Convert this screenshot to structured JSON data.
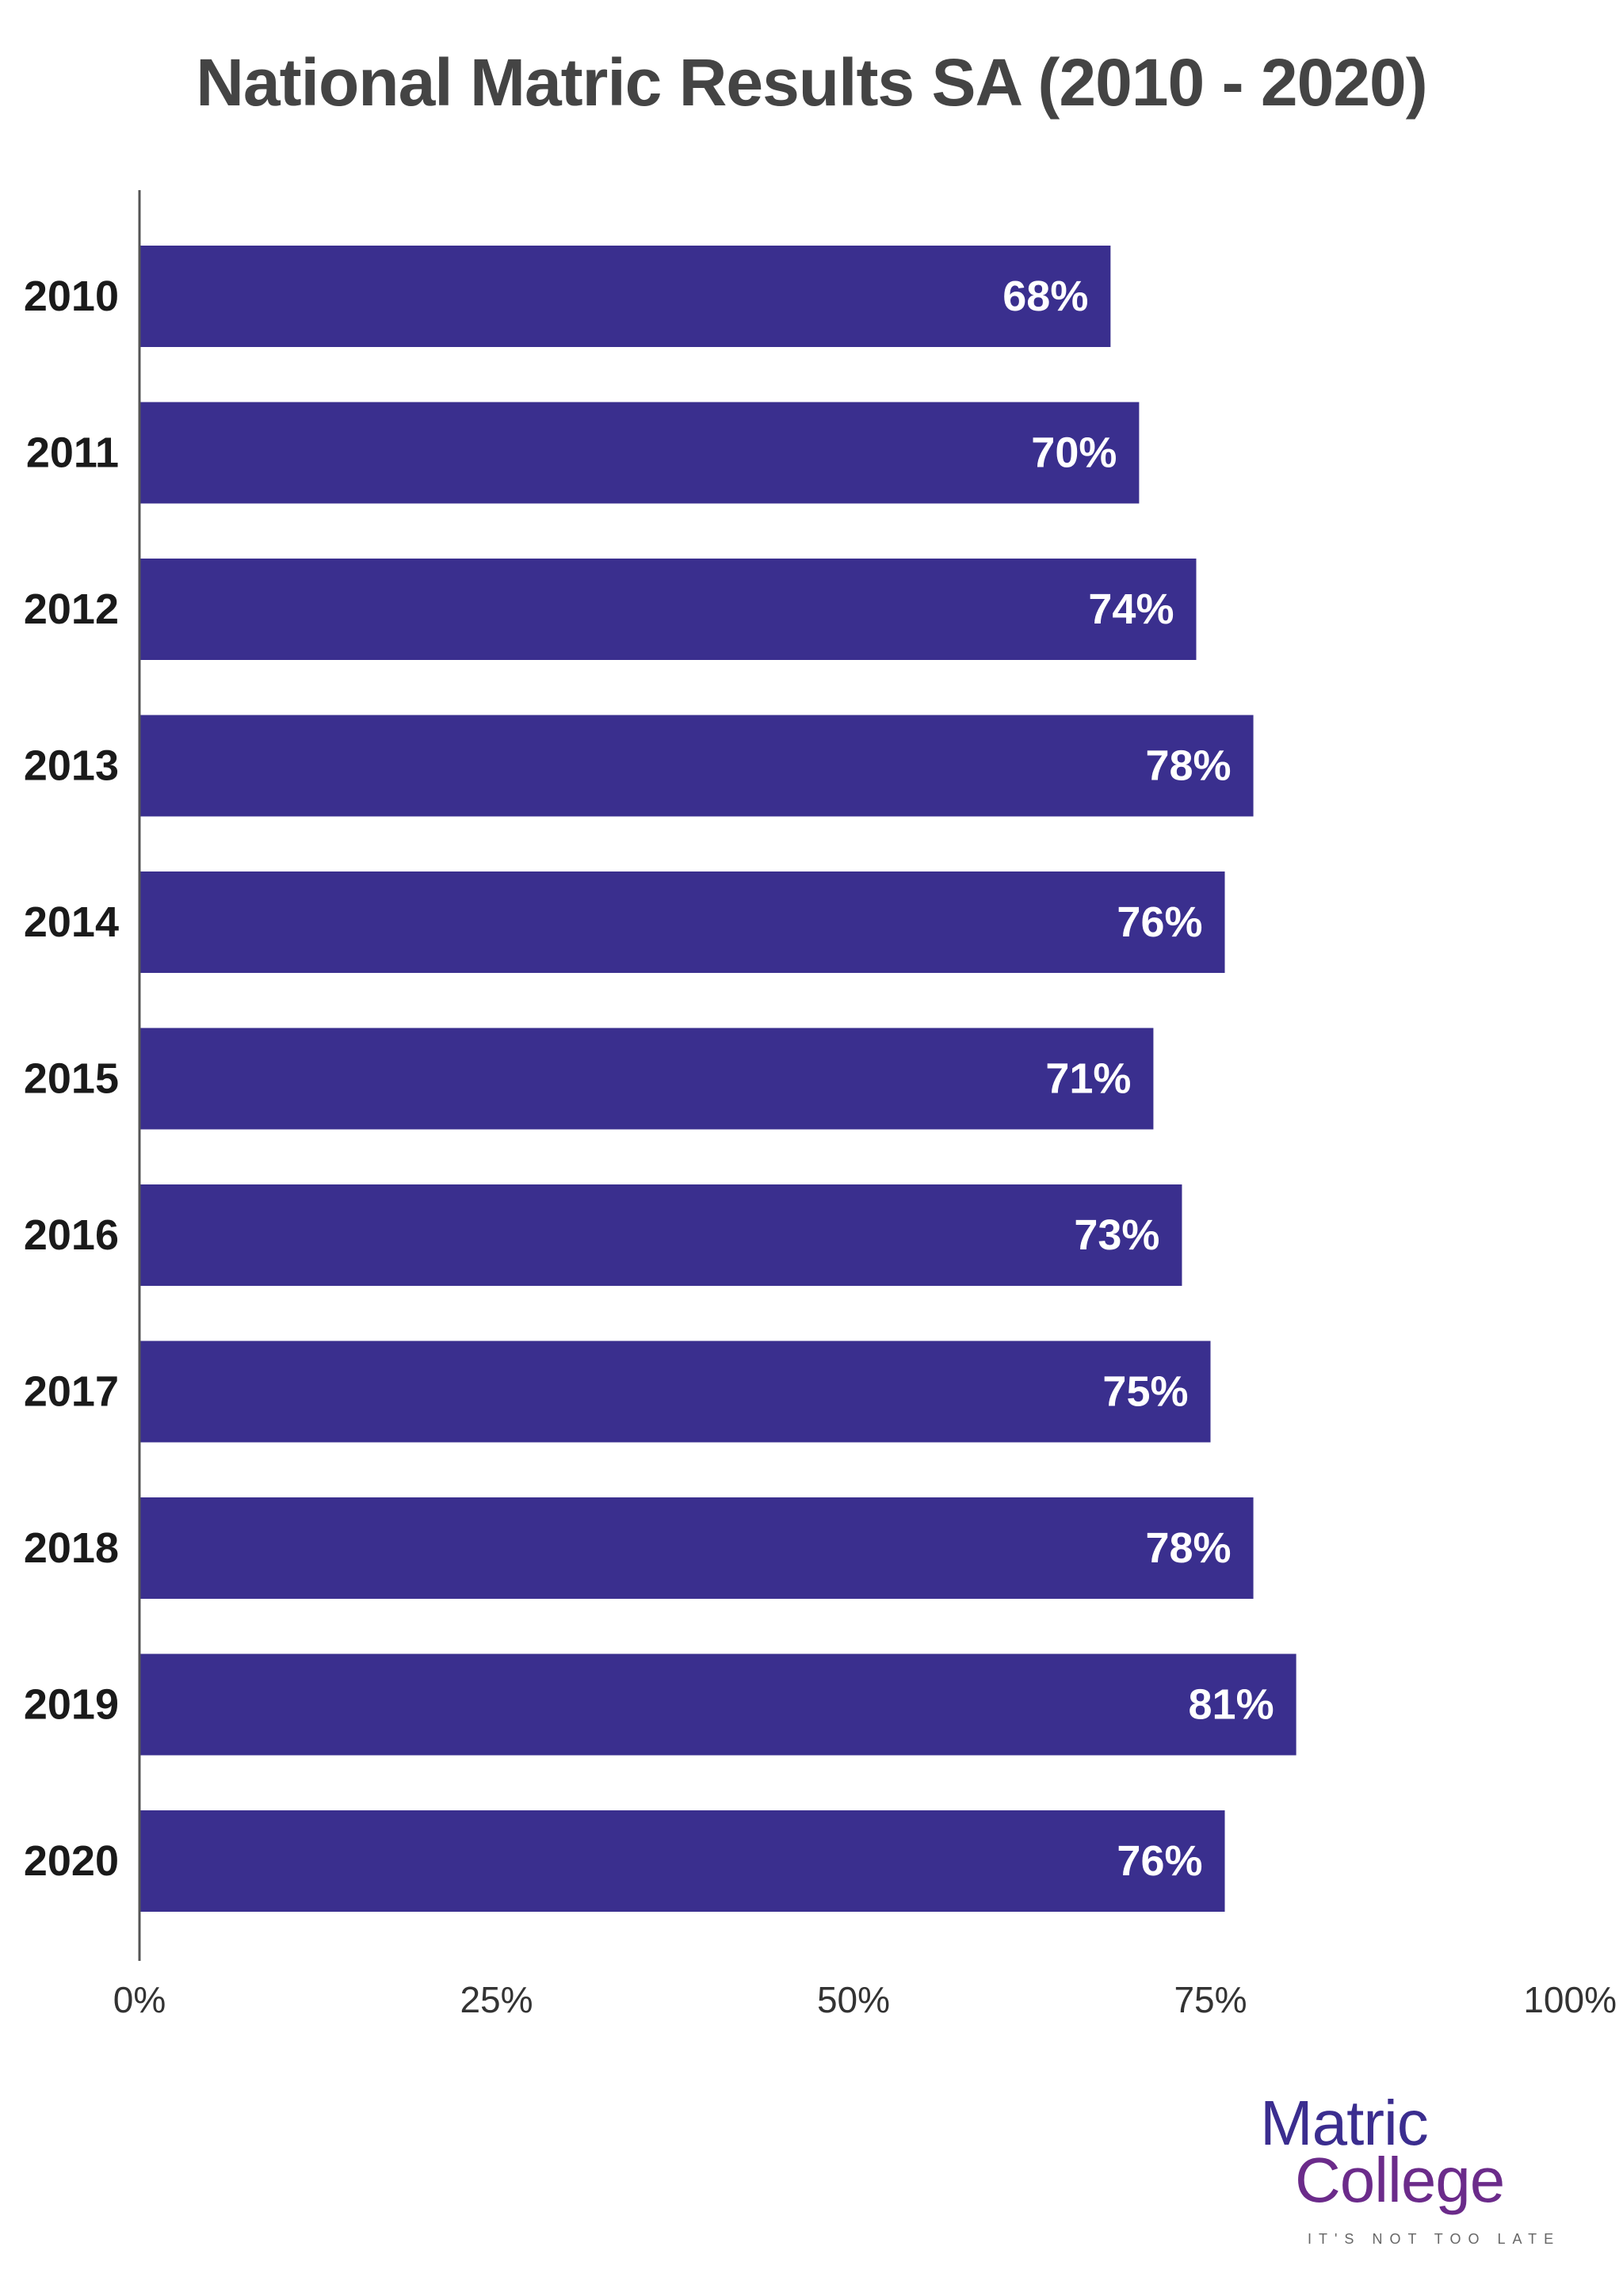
{
  "chart_data": {
    "type": "bar",
    "orientation": "horizontal",
    "title": "National Matric Results SA (2010 - 2020)",
    "categories": [
      "2010",
      "2011",
      "2012",
      "2013",
      "2014",
      "2015",
      "2016",
      "2017",
      "2018",
      "2019",
      "2020"
    ],
    "values": [
      68,
      70,
      74,
      78,
      76,
      71,
      73,
      75,
      78,
      81,
      76
    ],
    "data_labels": [
      "68%",
      "70%",
      "74%",
      "78%",
      "76%",
      "71%",
      "73%",
      "75%",
      "78%",
      "81%",
      "76%"
    ],
    "xlim": [
      0,
      100
    ],
    "x_ticks": [
      0,
      25,
      50,
      75,
      100
    ],
    "x_tick_labels": [
      "0%",
      "25%",
      "50%",
      "75%",
      "100%"
    ],
    "xlabel": "",
    "ylabel": "",
    "grid": false,
    "legend": "none",
    "bar_color": "#3a2f8e",
    "axis_color": "#555555"
  },
  "logo": {
    "line1": "Matric",
    "line2": "College",
    "tagline": "IT'S NOT TOO LATE"
  }
}
